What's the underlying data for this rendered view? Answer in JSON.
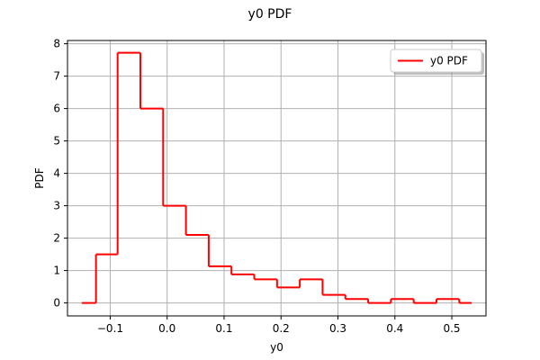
{
  "chart_data": {
    "type": "line",
    "title": "y0 PDF",
    "xlabel": "y0",
    "ylabel": "PDF",
    "xlim": [
      -0.175,
      0.56
    ],
    "ylim": [
      -0.4,
      8.1
    ],
    "x_ticks": [
      -0.1,
      0.0,
      0.1,
      0.2,
      0.3,
      0.4,
      0.5
    ],
    "x_tick_labels": [
      "−0.1",
      "0.0",
      "0.1",
      "0.2",
      "0.3",
      "0.4",
      "0.5"
    ],
    "y_ticks": [
      0,
      1,
      2,
      3,
      4,
      5,
      6,
      7,
      8
    ],
    "y_tick_labels": [
      "0",
      "1",
      "2",
      "3",
      "4",
      "5",
      "6",
      "7",
      "8"
    ],
    "grid": true,
    "legend": {
      "position": "top-right"
    },
    "series": [
      {
        "name": "y0 PDF",
        "color": "#ff0000",
        "segments": [
          {
            "x0": -0.15,
            "x1": -0.125,
            "y": 0.0
          },
          {
            "x0": -0.125,
            "x1": -0.087,
            "y": 1.5
          },
          {
            "x0": -0.087,
            "x1": -0.047,
            "y": 7.72
          },
          {
            "x0": -0.047,
            "x1": -0.007,
            "y": 6.0
          },
          {
            "x0": -0.007,
            "x1": 0.033,
            "y": 3.0
          },
          {
            "x0": 0.033,
            "x1": 0.073,
            "y": 2.1
          },
          {
            "x0": 0.073,
            "x1": 0.113,
            "y": 1.13
          },
          {
            "x0": 0.113,
            "x1": 0.153,
            "y": 0.88
          },
          {
            "x0": 0.153,
            "x1": 0.193,
            "y": 0.73
          },
          {
            "x0": 0.193,
            "x1": 0.233,
            "y": 0.48
          },
          {
            "x0": 0.233,
            "x1": 0.273,
            "y": 0.73
          },
          {
            "x0": 0.273,
            "x1": 0.313,
            "y": 0.25
          },
          {
            "x0": 0.313,
            "x1": 0.353,
            "y": 0.12
          },
          {
            "x0": 0.353,
            "x1": 0.393,
            "y": 0.0
          },
          {
            "x0": 0.393,
            "x1": 0.433,
            "y": 0.12
          },
          {
            "x0": 0.433,
            "x1": 0.473,
            "y": 0.0
          },
          {
            "x0": 0.473,
            "x1": 0.513,
            "y": 0.12
          },
          {
            "x0": 0.513,
            "x1": 0.535,
            "y": 0.0
          }
        ]
      }
    ]
  }
}
